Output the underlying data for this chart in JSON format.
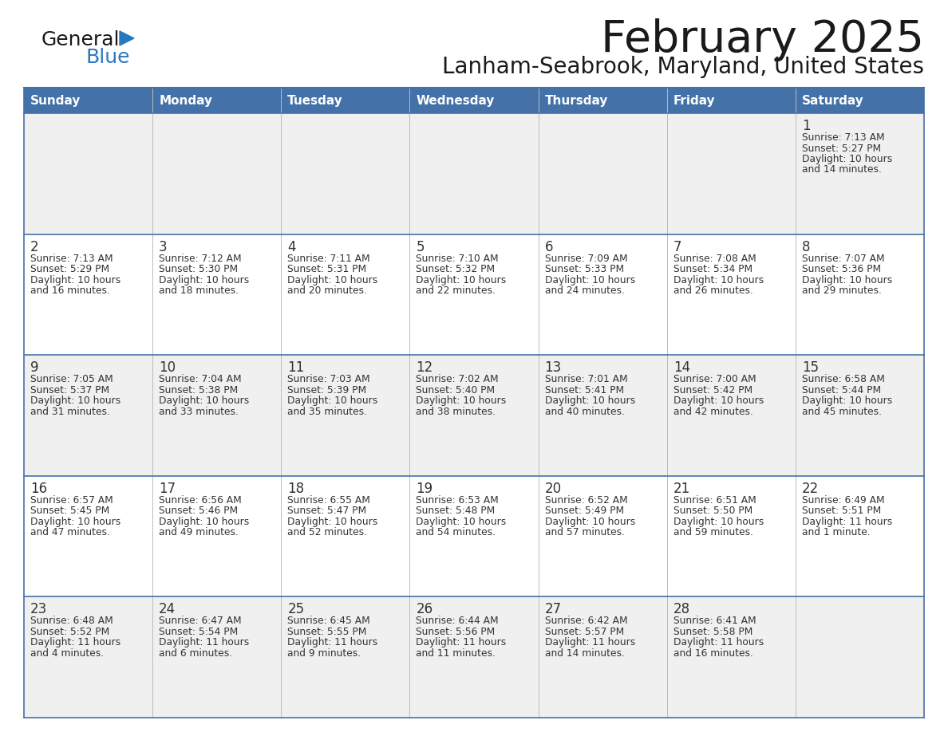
{
  "title": "February 2025",
  "subtitle": "Lanham-Seabrook, Maryland, United States",
  "days_of_week": [
    "Sunday",
    "Monday",
    "Tuesday",
    "Wednesday",
    "Thursday",
    "Friday",
    "Saturday"
  ],
  "header_bg_color": "#4472a8",
  "header_text_color": "#ffffff",
  "row_bg_color_odd": "#f0f0f0",
  "row_bg_color_even": "#ffffff",
  "cell_border_color": "#4472a8",
  "title_color": "#1a1a1a",
  "subtitle_color": "#1a1a1a",
  "day_num_color": "#333333",
  "info_text_color": "#333333",
  "logo_general_color": "#1a1a1a",
  "logo_blue_color": "#2878c0",
  "calendar_data": [
    [
      {
        "day": null,
        "info": null
      },
      {
        "day": null,
        "info": null
      },
      {
        "day": null,
        "info": null
      },
      {
        "day": null,
        "info": null
      },
      {
        "day": null,
        "info": null
      },
      {
        "day": null,
        "info": null
      },
      {
        "day": 1,
        "info": "Sunrise: 7:13 AM\nSunset: 5:27 PM\nDaylight: 10 hours\nand 14 minutes."
      }
    ],
    [
      {
        "day": 2,
        "info": "Sunrise: 7:13 AM\nSunset: 5:29 PM\nDaylight: 10 hours\nand 16 minutes."
      },
      {
        "day": 3,
        "info": "Sunrise: 7:12 AM\nSunset: 5:30 PM\nDaylight: 10 hours\nand 18 minutes."
      },
      {
        "day": 4,
        "info": "Sunrise: 7:11 AM\nSunset: 5:31 PM\nDaylight: 10 hours\nand 20 minutes."
      },
      {
        "day": 5,
        "info": "Sunrise: 7:10 AM\nSunset: 5:32 PM\nDaylight: 10 hours\nand 22 minutes."
      },
      {
        "day": 6,
        "info": "Sunrise: 7:09 AM\nSunset: 5:33 PM\nDaylight: 10 hours\nand 24 minutes."
      },
      {
        "day": 7,
        "info": "Sunrise: 7:08 AM\nSunset: 5:34 PM\nDaylight: 10 hours\nand 26 minutes."
      },
      {
        "day": 8,
        "info": "Sunrise: 7:07 AM\nSunset: 5:36 PM\nDaylight: 10 hours\nand 29 minutes."
      }
    ],
    [
      {
        "day": 9,
        "info": "Sunrise: 7:05 AM\nSunset: 5:37 PM\nDaylight: 10 hours\nand 31 minutes."
      },
      {
        "day": 10,
        "info": "Sunrise: 7:04 AM\nSunset: 5:38 PM\nDaylight: 10 hours\nand 33 minutes."
      },
      {
        "day": 11,
        "info": "Sunrise: 7:03 AM\nSunset: 5:39 PM\nDaylight: 10 hours\nand 35 minutes."
      },
      {
        "day": 12,
        "info": "Sunrise: 7:02 AM\nSunset: 5:40 PM\nDaylight: 10 hours\nand 38 minutes."
      },
      {
        "day": 13,
        "info": "Sunrise: 7:01 AM\nSunset: 5:41 PM\nDaylight: 10 hours\nand 40 minutes."
      },
      {
        "day": 14,
        "info": "Sunrise: 7:00 AM\nSunset: 5:42 PM\nDaylight: 10 hours\nand 42 minutes."
      },
      {
        "day": 15,
        "info": "Sunrise: 6:58 AM\nSunset: 5:44 PM\nDaylight: 10 hours\nand 45 minutes."
      }
    ],
    [
      {
        "day": 16,
        "info": "Sunrise: 6:57 AM\nSunset: 5:45 PM\nDaylight: 10 hours\nand 47 minutes."
      },
      {
        "day": 17,
        "info": "Sunrise: 6:56 AM\nSunset: 5:46 PM\nDaylight: 10 hours\nand 49 minutes."
      },
      {
        "day": 18,
        "info": "Sunrise: 6:55 AM\nSunset: 5:47 PM\nDaylight: 10 hours\nand 52 minutes."
      },
      {
        "day": 19,
        "info": "Sunrise: 6:53 AM\nSunset: 5:48 PM\nDaylight: 10 hours\nand 54 minutes."
      },
      {
        "day": 20,
        "info": "Sunrise: 6:52 AM\nSunset: 5:49 PM\nDaylight: 10 hours\nand 57 minutes."
      },
      {
        "day": 21,
        "info": "Sunrise: 6:51 AM\nSunset: 5:50 PM\nDaylight: 10 hours\nand 59 minutes."
      },
      {
        "day": 22,
        "info": "Sunrise: 6:49 AM\nSunset: 5:51 PM\nDaylight: 11 hours\nand 1 minute."
      }
    ],
    [
      {
        "day": 23,
        "info": "Sunrise: 6:48 AM\nSunset: 5:52 PM\nDaylight: 11 hours\nand 4 minutes."
      },
      {
        "day": 24,
        "info": "Sunrise: 6:47 AM\nSunset: 5:54 PM\nDaylight: 11 hours\nand 6 minutes."
      },
      {
        "day": 25,
        "info": "Sunrise: 6:45 AM\nSunset: 5:55 PM\nDaylight: 11 hours\nand 9 minutes."
      },
      {
        "day": 26,
        "info": "Sunrise: 6:44 AM\nSunset: 5:56 PM\nDaylight: 11 hours\nand 11 minutes."
      },
      {
        "day": 27,
        "info": "Sunrise: 6:42 AM\nSunset: 5:57 PM\nDaylight: 11 hours\nand 14 minutes."
      },
      {
        "day": 28,
        "info": "Sunrise: 6:41 AM\nSunset: 5:58 PM\nDaylight: 11 hours\nand 16 minutes."
      },
      {
        "day": null,
        "info": null
      }
    ]
  ]
}
